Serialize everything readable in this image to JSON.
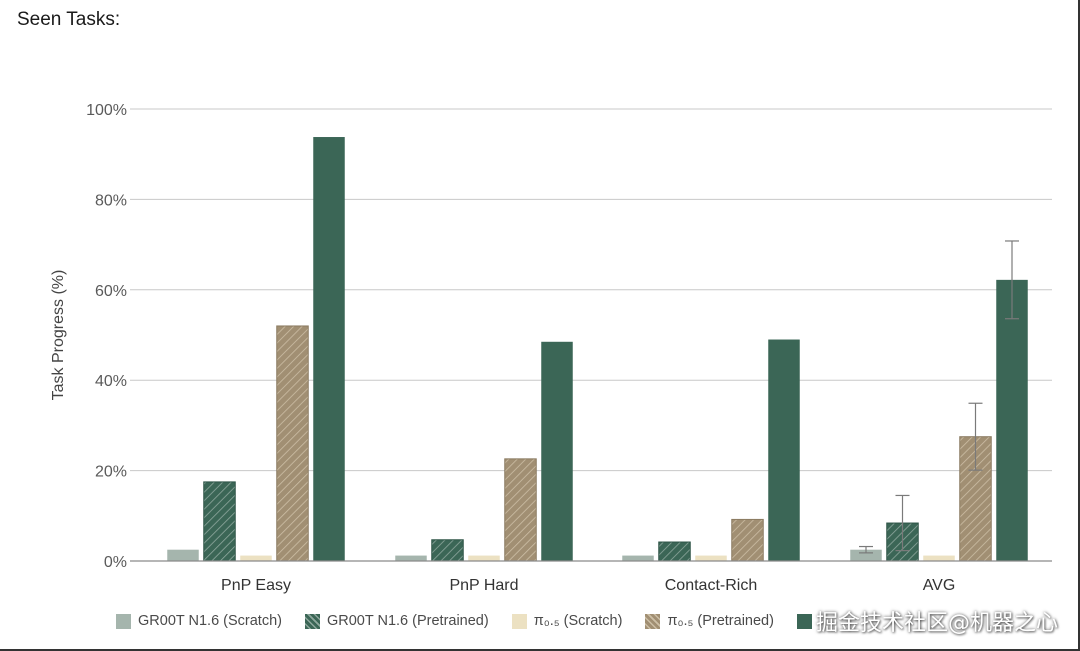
{
  "page_title": "Seen Tasks:",
  "watermark": "掘金技术社区@机器之心",
  "colors": {
    "scratch_green": "#a5b5ad",
    "pretrained_green": "#3b6656",
    "scratch_tan": "#ece1c2",
    "pretrained_tan": "#a18f73",
    "solid_green": "#3b6656",
    "grid": "#c8c8c8"
  },
  "legend": {
    "items": [
      {
        "label": "GR00T N1.6 (Scratch)",
        "color": "#a5b5ad",
        "hatched": false
      },
      {
        "label": "GR00T N1.6 (Pretrained)",
        "color": "#3b6656",
        "hatched": true
      },
      {
        "label": "π₀.₅ (Scratch)",
        "color": "#ece1c2",
        "hatched": false
      },
      {
        "label": "π₀.₅ (Pretrained)",
        "color": "#a18f73",
        "hatched": true
      },
      {
        "label": "",
        "color": "#3b6656",
        "hatched": false
      }
    ]
  },
  "chart_data": {
    "type": "bar",
    "title": "",
    "xlabel": "",
    "ylabel": "Task Progress (%)",
    "ylim": [
      0,
      100
    ],
    "yticks": [
      0,
      20,
      40,
      60,
      80,
      100
    ],
    "ytick_labels": [
      "0%",
      "20%",
      "40%",
      "60%",
      "80%",
      "100%"
    ],
    "grid": true,
    "legend_position": "bottom",
    "categories": [
      "PnP Easy",
      "PnP Hard",
      "Contact-Rich",
      "AVG"
    ],
    "series": [
      {
        "name": "GR00T N1.6 (Scratch)",
        "values": [
          2.5,
          1.2,
          1.2,
          2.5
        ],
        "error": [
          null,
          null,
          null,
          0.7
        ]
      },
      {
        "name": "GR00T N1.6 (Pretrained)",
        "values": [
          17.5,
          4.7,
          4.2,
          8.4
        ],
        "error": [
          null,
          null,
          null,
          6.1
        ]
      },
      {
        "name": "π₀.₅ (Scratch)",
        "values": [
          1.2,
          1.2,
          1.2,
          1.2
        ],
        "error": [
          null,
          null,
          null,
          null
        ]
      },
      {
        "name": "π₀.₅ (Pretrained)",
        "values": [
          52.0,
          22.6,
          9.2,
          27.5
        ],
        "error": [
          null,
          null,
          null,
          7.4
        ]
      },
      {
        "name": "",
        "values": [
          93.8,
          48.5,
          49.0,
          62.2
        ],
        "error": [
          null,
          null,
          null,
          8.6
        ]
      }
    ]
  }
}
